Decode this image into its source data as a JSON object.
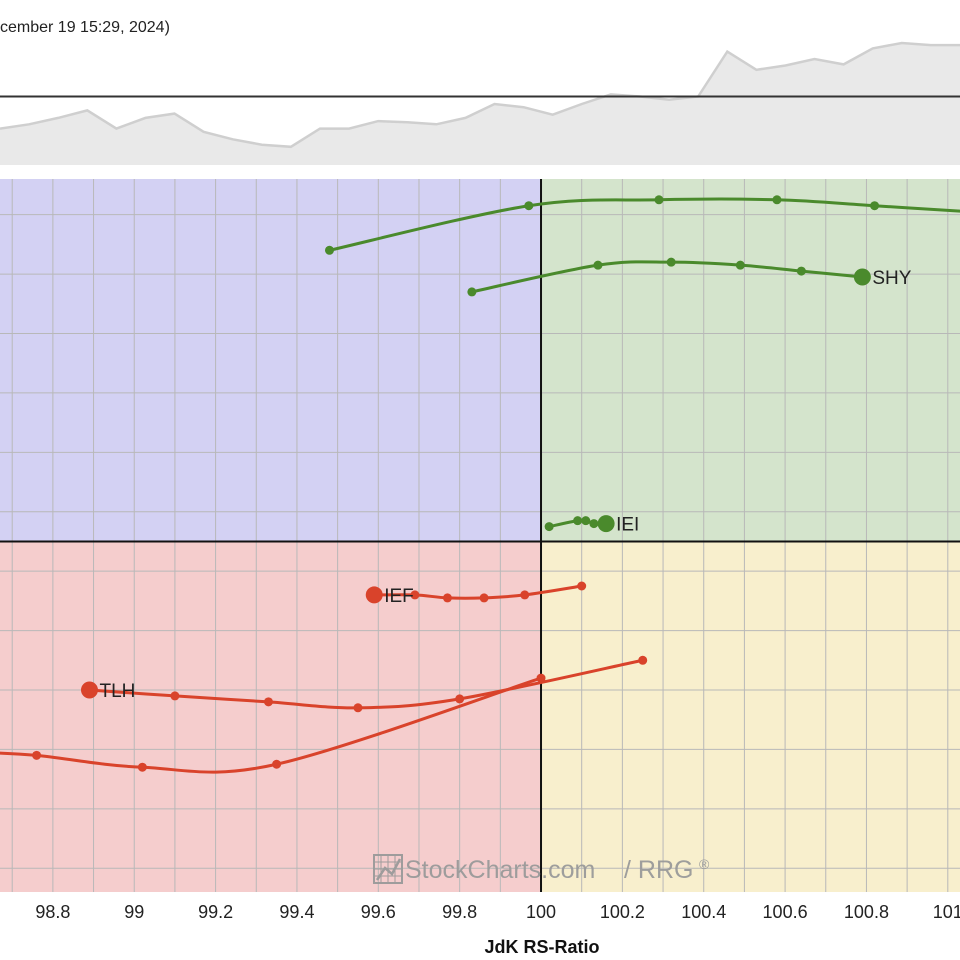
{
  "header": {
    "date_text": "cember 19 15:29, 2024)"
  },
  "colors": {
    "leading": "#d4e4cc",
    "weakening": "#f8efcd",
    "lagging": "#f5cdcd",
    "improving": "#d3d1f3",
    "grid": "#b8b8b8",
    "green_series": "#4a8a2c",
    "red_series": "#d9432b",
    "benchmark_fill": "#e9e9e9",
    "benchmark_line": "#cfcfcf",
    "watermark": "#9a9a9a"
  },
  "watermark": {
    "text": "StockCharts.com",
    "suffix": "/ RRG",
    "reg": "®",
    "icon": "chart-logo-icon"
  },
  "chart_data": {
    "type": "scatter",
    "title": "",
    "xlabel": "JdK RS-Ratio",
    "ylabel": "",
    "x_ticks": [
      98.8,
      99,
      99.2,
      99.4,
      99.6,
      99.8,
      100,
      100.2,
      100.4,
      100.6,
      100.8,
      101
    ],
    "x_tick_labels": [
      "98.8",
      "99",
      "99.2",
      "99.4",
      "99.6",
      "99.8",
      "100",
      "100.2",
      "100.4",
      "100.6",
      "100.8",
      "101"
    ],
    "xlim": [
      98.67,
      101.03
    ],
    "ylim": [
      98.82,
      101.22
    ],
    "y_center": 100,
    "grid": true,
    "quadrants": [
      "improving",
      "leading",
      "weakening",
      "lagging"
    ],
    "series": [
      {
        "name": "",
        "color": "#4a8a2c",
        "points": [
          [
            99.48,
            100.98
          ],
          [
            99.97,
            101.13
          ],
          [
            100.29,
            101.15
          ],
          [
            100.58,
            101.15
          ],
          [
            100.82,
            101.13
          ],
          [
            101.05,
            101.11
          ]
        ]
      },
      {
        "name": "SHY",
        "color": "#4a8a2c",
        "points": [
          [
            99.83,
            100.84
          ],
          [
            100.14,
            100.93
          ],
          [
            100.32,
            100.94
          ],
          [
            100.49,
            100.93
          ],
          [
            100.64,
            100.91
          ],
          [
            100.79,
            100.89
          ]
        ]
      },
      {
        "name": "IEI",
        "color": "#4a8a2c",
        "points": [
          [
            100.02,
            100.05
          ],
          [
            100.09,
            100.07
          ],
          [
            100.11,
            100.07
          ],
          [
            100.13,
            100.06
          ],
          [
            100.16,
            100.06
          ]
        ]
      },
      {
        "name": "IEF",
        "color": "#d9432b",
        "points": [
          [
            100.1,
            99.85
          ],
          [
            99.96,
            99.82
          ],
          [
            99.86,
            99.81
          ],
          [
            99.77,
            99.81
          ],
          [
            99.69,
            99.82
          ],
          [
            99.59,
            99.82
          ]
        ]
      },
      {
        "name": "TLH",
        "color": "#d9432b",
        "points": [
          [
            100.25,
            99.6
          ],
          [
            99.8,
            99.47
          ],
          [
            99.55,
            99.44
          ],
          [
            99.33,
            99.46
          ],
          [
            99.1,
            99.48
          ],
          [
            98.89,
            99.5
          ]
        ]
      },
      {
        "name": "",
        "color": "#d9432b",
        "points": [
          [
            100.0,
            99.54
          ],
          [
            99.35,
            99.25
          ],
          [
            99.02,
            99.24
          ],
          [
            98.76,
            99.28
          ],
          [
            98.62,
            99.29
          ]
        ]
      }
    ],
    "benchmark": {
      "values": [
        0.2,
        0.24,
        0.3,
        0.37,
        0.2,
        0.3,
        0.34,
        0.17,
        0.1,
        0.05,
        0.03,
        0.2,
        0.2,
        0.27,
        0.26,
        0.24,
        0.3,
        0.43,
        0.4,
        0.33,
        0.43,
        0.52,
        0.5,
        0.47,
        0.5,
        0.92,
        0.75,
        0.79,
        0.85,
        0.8,
        0.95,
        1.0,
        0.98,
        0.98
      ],
      "reference": 0.5
    }
  }
}
